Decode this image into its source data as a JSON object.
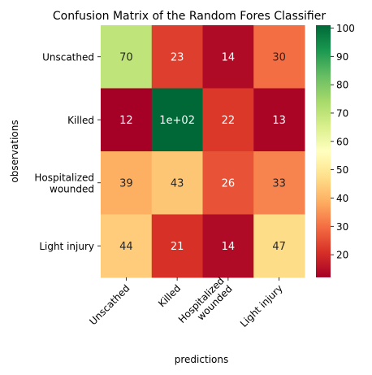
{
  "chart_data": {
    "type": "heatmap",
    "title": "Confusion Matrix of the Random Fores Classifier",
    "xlabel": "predictions",
    "ylabel": "observations",
    "row_labels": [
      "Unscathed",
      "Killed",
      "Hospitalized\nwounded",
      "Light injury"
    ],
    "col_labels": [
      "Unscathed",
      "Killed",
      "Hospitalized\nwounded",
      "Light injury"
    ],
    "values": [
      [
        70,
        23,
        14,
        30
      ],
      [
        12,
        101,
        22,
        13
      ],
      [
        39,
        43,
        26,
        33
      ],
      [
        44,
        21,
        14,
        47
      ]
    ],
    "annotations": [
      [
        "70",
        "23",
        "14",
        "30"
      ],
      [
        "12",
        "1e+02",
        "22",
        "13"
      ],
      [
        "39",
        "43",
        "26",
        "33"
      ],
      [
        "44",
        "21",
        "14",
        "47"
      ]
    ],
    "colormap": "RdYlGn",
    "vmin": 12,
    "vmax": 101,
    "colorbar_ticks": [
      20,
      30,
      40,
      50,
      60,
      70,
      80,
      90,
      100
    ],
    "colors": {
      "low": "#a50026",
      "mid": "#ffffbf",
      "high": "#006837"
    }
  }
}
